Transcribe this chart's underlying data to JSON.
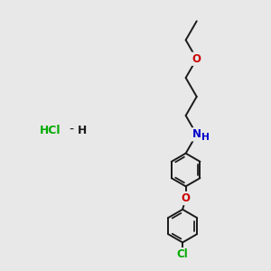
{
  "bg_color": "#e8e8e8",
  "bond_color": "#1a1a1a",
  "N_color": "#0000cc",
  "O_color": "#cc0000",
  "Cl_color": "#00aa00",
  "line_width": 1.4,
  "font_size": 8.5,
  "xlim": [
    0,
    10
  ],
  "ylim": [
    0,
    10
  ]
}
